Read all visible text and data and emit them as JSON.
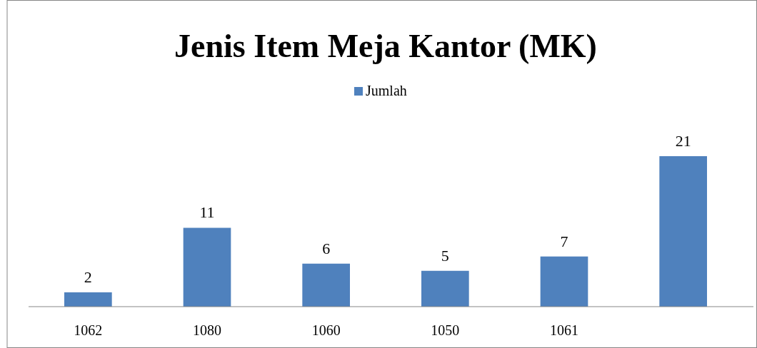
{
  "chart_data": {
    "type": "bar",
    "title": "Jenis Item Meja Kantor (MK)",
    "categories": [
      "1062",
      "1080",
      "1060",
      "1050",
      "1061",
      null
    ],
    "series": [
      {
        "name": "Jumlah",
        "color": "#4f81bd",
        "values": [
          2,
          11,
          6,
          5,
          7,
          21
        ]
      }
    ],
    "data_labels": true,
    "legend": "top"
  }
}
